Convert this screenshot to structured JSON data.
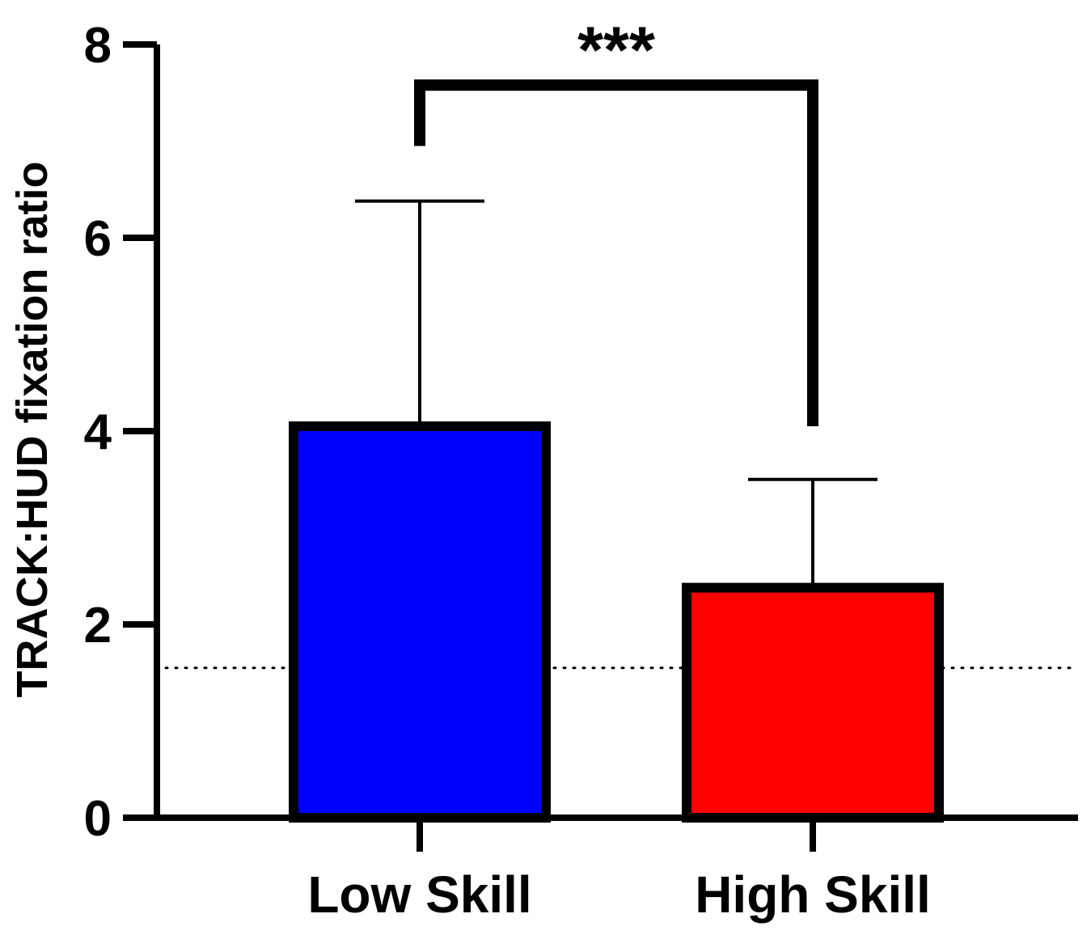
{
  "chart_data": {
    "type": "bar",
    "ylabel": "TRACK:HUD fixation ratio",
    "ylim": [
      0,
      8
    ],
    "yticks": [
      0,
      2,
      4,
      6,
      8
    ],
    "categories": [
      "Low Skill",
      "High Skill"
    ],
    "values": [
      4.05,
      2.38
    ],
    "error_upper": [
      6.38,
      3.5
    ],
    "colors": [
      "#0000ff",
      "#ff0000"
    ],
    "edge_color": "#000000",
    "reference_line": {
      "y": 1.55,
      "style": "dotted"
    },
    "significance": {
      "label": "***",
      "between": [
        0,
        1
      ],
      "left_end": 6.95,
      "right_end": 4.05,
      "top": 7.58
    },
    "grid": false
  }
}
